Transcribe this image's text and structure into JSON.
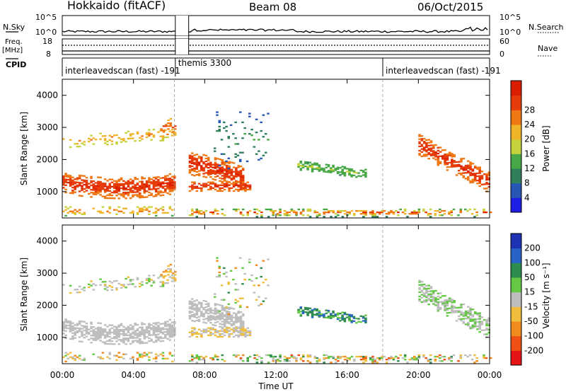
{
  "header": {
    "title": "Hokkaido (fitACF)",
    "beam": "Beam 08",
    "date": "06/Oct/2015"
  },
  "summary": {
    "nsky_label": "N.Sky",
    "nsearch_label": "N.Search",
    "nsky_ticks": [
      "10^5",
      "10^0"
    ],
    "nsearch_ticks": [
      "10^5",
      "10^0"
    ],
    "freq_label": "Freq.",
    "freq_unit": "[MHz]",
    "freq_ticks": [
      "18",
      "8"
    ],
    "nave_label": "Nave",
    "nave_ticks": [
      "60",
      "0"
    ],
    "cpid_label": "CPID",
    "cpid_segments": [
      {
        "label": "interleavedscan (fast)  -191",
        "start": 0.0,
        "end": 6.35
      },
      {
        "label": "themis 3300",
        "start": 6.35,
        "end": 18.0
      },
      {
        "label": "interleavedscan (fast)  -191",
        "start": 18.0,
        "end": 24.0
      }
    ],
    "data_gap_hours": [
      6.35,
      7.1
    ]
  },
  "chart_data": [
    {
      "type": "heatmap",
      "name": "power",
      "ylabel": "Slant Range [km]",
      "ylim": [
        180,
        4500
      ],
      "yticks": [
        1000,
        2000,
        3000,
        4000
      ],
      "xlim": [
        0,
        24
      ],
      "colorbar": {
        "label": "Power [dB]",
        "range": [
          0,
          32
        ],
        "ticks": [
          4,
          8,
          12,
          16,
          20,
          24,
          28
        ],
        "colors": [
          "#1e1ee6",
          "#2856b4",
          "#2f7f5a",
          "#48a848",
          "#c8d23c",
          "#f0b428",
          "#f07814",
          "#e63c0a",
          "#dc1e00"
        ]
      }
    },
    {
      "type": "heatmap",
      "name": "velocity",
      "ylabel": "Slant Range [km]",
      "ylim": [
        180,
        4500
      ],
      "yticks": [
        1000,
        2000,
        3000,
        4000
      ],
      "xlim": [
        0,
        24
      ],
      "xlabel": "Time UT",
      "xticks": [
        "00:00",
        "04:00",
        "08:00",
        "12:00",
        "16:00",
        "20:00",
        "00:00"
      ],
      "colorbar": {
        "label": "Velocity [m s⁻¹]",
        "ticks": [
          "200",
          "100",
          "50",
          "15",
          "-15",
          "-50",
          "-100",
          "-200"
        ],
        "colors": [
          "#1e32b4",
          "#2864c8",
          "#2f8c50",
          "#64c846",
          "#bebebe",
          "#f0be3c",
          "#f08c1e",
          "#f05014",
          "#e61414"
        ]
      }
    }
  ]
}
